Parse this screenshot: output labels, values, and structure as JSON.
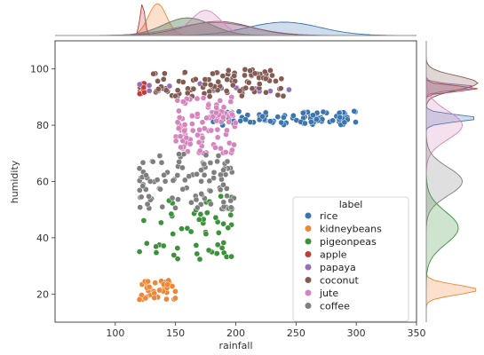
{
  "chart_data": {
    "type": "scatter",
    "title": "",
    "xlabel": "rainfall",
    "ylabel": "humidity",
    "xlim": [
      50,
      350
    ],
    "ylim": [
      10,
      110
    ],
    "xticks": [
      100,
      150,
      200,
      250,
      300,
      350
    ],
    "yticks": [
      20,
      40,
      60,
      80,
      100
    ],
    "legend_title": "label",
    "legend_position": "bottom-right",
    "marginal": "kde",
    "series": [
      {
        "name": "rice",
        "color": "#3b75af",
        "cluster": {
          "x": [
            180,
            300
          ],
          "y": [
            80,
            85
          ],
          "count": 90
        }
      },
      {
        "name": "kidneybeans",
        "color": "#ef8636",
        "cluster": {
          "x": [
            120,
            150
          ],
          "y": [
            18,
            25
          ],
          "count": 40
        }
      },
      {
        "name": "pigeonpeas",
        "color": "#3a923a",
        "cluster": {
          "x": [
            120,
            200
          ],
          "y": [
            32,
            55
          ],
          "count": 60
        }
      },
      {
        "name": "apple",
        "color": "#c03d3e",
        "cluster": {
          "x": [
            120,
            125
          ],
          "y": [
            91,
            95
          ],
          "count": 15
        }
      },
      {
        "name": "papaya",
        "color": "#9372b2",
        "cluster": {
          "x": [
            120,
            245
          ],
          "y": [
            92,
            95
          ],
          "count": 15
        }
      },
      {
        "name": "coconut",
        "color": "#845b53",
        "cluster": {
          "x": [
            130,
            240
          ],
          "y": [
            90,
            100
          ],
          "count": 100
        }
      },
      {
        "name": "jute",
        "color": "#d684bd",
        "cluster": {
          "x": [
            150,
            200
          ],
          "y": [
            70,
            90
          ],
          "count": 100
        }
      },
      {
        "name": "coffee",
        "color": "#7f7f7f",
        "cluster": {
          "x": [
            120,
            200
          ],
          "y": [
            50,
            70
          ],
          "count": 100
        }
      }
    ]
  }
}
